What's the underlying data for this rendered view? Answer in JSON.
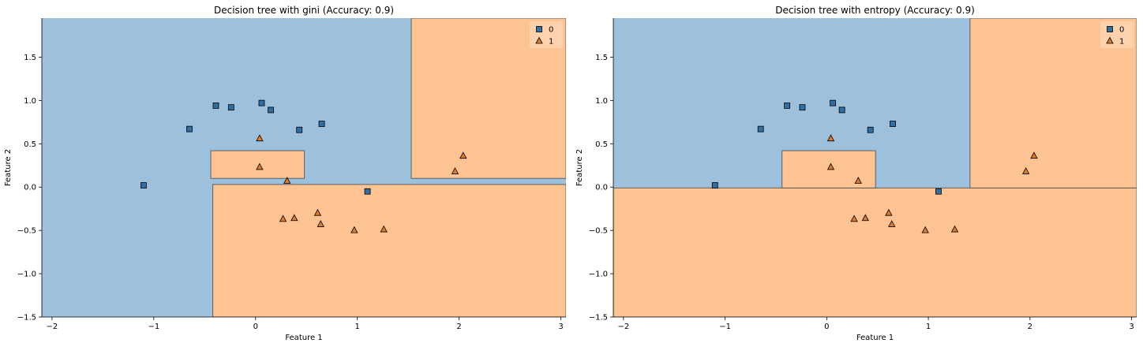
{
  "chart_data": [
    {
      "type": "scatter",
      "title": "Decision tree with gini (Accuracy: 0.9)",
      "xlabel": "Feature 1",
      "ylabel": "Feature 2",
      "xlim": [
        -2.1,
        3.05
      ],
      "ylim": [
        -1.5,
        1.95
      ],
      "xticks": [
        -2,
        -1,
        0,
        1,
        2,
        3
      ],
      "yticks": [
        -1.5,
        -1.0,
        -0.5,
        0.0,
        0.5,
        1.0,
        1.5
      ],
      "legend_position": "top-right",
      "region_colors": {
        "0": "#9dc0dc",
        "1": "#fec392"
      },
      "class1_regions": [
        {
          "x": [
            1.53,
            3.05
          ],
          "y": [
            0.1,
            1.95
          ]
        },
        {
          "x": [
            -0.44,
            0.48
          ],
          "y": [
            0.1,
            0.42
          ]
        },
        {
          "x": [
            -0.42,
            3.05
          ],
          "y": [
            -1.5,
            0.03
          ]
        }
      ],
      "series": [
        {
          "name": "0",
          "marker": "square",
          "color": "#2f6fa3",
          "points": [
            [
              -1.1,
              0.02
            ],
            [
              -0.65,
              0.67
            ],
            [
              -0.39,
              0.94
            ],
            [
              -0.24,
              0.92
            ],
            [
              0.06,
              0.97
            ],
            [
              0.15,
              0.89
            ],
            [
              0.43,
              0.66
            ],
            [
              0.65,
              0.73
            ],
            [
              1.1,
              -0.05
            ]
          ]
        },
        {
          "name": "1",
          "marker": "triangle",
          "color": "#e07b2a",
          "points": [
            [
              0.04,
              0.56
            ],
            [
              0.04,
              0.23
            ],
            [
              0.31,
              0.07
            ],
            [
              0.27,
              -0.37
            ],
            [
              0.38,
              -0.36
            ],
            [
              0.61,
              -0.3
            ],
            [
              0.64,
              -0.43
            ],
            [
              0.97,
              -0.5
            ],
            [
              1.26,
              -0.49
            ],
            [
              1.96,
              0.18
            ],
            [
              2.04,
              0.36
            ]
          ]
        }
      ]
    },
    {
      "type": "scatter",
      "title": "Decision tree with entropy (Accuracy: 0.9)",
      "xlabel": "Feature 1",
      "ylabel": "Feature 2",
      "xlim": [
        -2.1,
        3.05
      ],
      "ylim": [
        -1.5,
        1.95
      ],
      "xticks": [
        -2,
        -1,
        0,
        1,
        2,
        3
      ],
      "yticks": [
        -1.5,
        -1.0,
        -0.5,
        0.0,
        0.5,
        1.0,
        1.5
      ],
      "legend_position": "top-right",
      "region_colors": {
        "0": "#9dc0dc",
        "1": "#fec392"
      },
      "class1_regions": [
        {
          "x": [
            -2.1,
            3.05
          ],
          "y": [
            -1.5,
            -0.01
          ]
        },
        {
          "x": [
            -0.44,
            0.48
          ],
          "y": [
            -0.01,
            0.42
          ]
        },
        {
          "x": [
            1.41,
            3.05
          ],
          "y": [
            -0.01,
            1.95
          ]
        }
      ],
      "series": [
        {
          "name": "0",
          "marker": "square",
          "color": "#2f6fa3",
          "points": [
            [
              -1.1,
              0.02
            ],
            [
              -0.65,
              0.67
            ],
            [
              -0.39,
              0.94
            ],
            [
              -0.24,
              0.92
            ],
            [
              0.06,
              0.97
            ],
            [
              0.15,
              0.89
            ],
            [
              0.43,
              0.66
            ],
            [
              0.65,
              0.73
            ],
            [
              1.1,
              -0.05
            ]
          ]
        },
        {
          "name": "1",
          "marker": "triangle",
          "color": "#e07b2a",
          "points": [
            [
              0.04,
              0.56
            ],
            [
              0.04,
              0.23
            ],
            [
              0.31,
              0.07
            ],
            [
              0.27,
              -0.37
            ],
            [
              0.38,
              -0.36
            ],
            [
              0.61,
              -0.3
            ],
            [
              0.64,
              -0.43
            ],
            [
              0.97,
              -0.5
            ],
            [
              1.26,
              -0.49
            ],
            [
              1.96,
              0.18
            ],
            [
              2.04,
              0.36
            ]
          ]
        }
      ]
    }
  ]
}
